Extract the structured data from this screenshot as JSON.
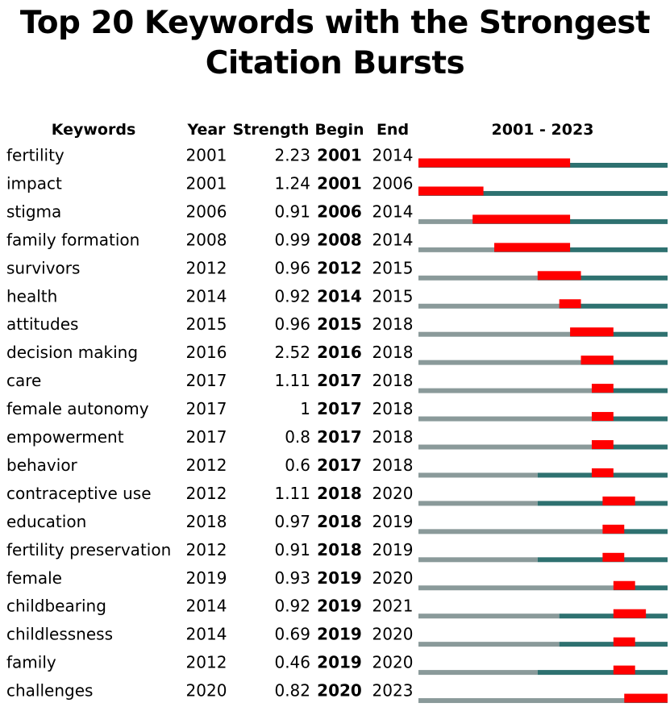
{
  "title_line1": "Top 20 Keywords with the Strongest",
  "title_line2": "Citation Bursts",
  "headers": {
    "keywords": "Keywords",
    "year": "Year",
    "strength": "Strength",
    "begin": "Begin",
    "end": "End",
    "range": "2001 - 2023"
  },
  "colors": {
    "pre_year": "#8a9a9a",
    "active": "#2e7170",
    "burst": "#ff0000"
  },
  "chart_data": {
    "type": "table",
    "title": "Top 20 Keywords with the Strongest Citation Bursts",
    "x_range": [
      2001,
      2023
    ],
    "columns": [
      "Keywords",
      "Year",
      "Strength",
      "Begin",
      "End"
    ],
    "rows": [
      {
        "keyword": "fertility",
        "year": "2001",
        "strength": "2.23",
        "begin": "2001",
        "end": "2014"
      },
      {
        "keyword": "impact",
        "year": "2001",
        "strength": "1.24",
        "begin": "2001",
        "end": "2006"
      },
      {
        "keyword": "stigma",
        "year": "2006",
        "strength": "0.91",
        "begin": "2006",
        "end": "2014"
      },
      {
        "keyword": "family formation",
        "year": "2008",
        "strength": "0.99",
        "begin": "2008",
        "end": "2014"
      },
      {
        "keyword": "survivors",
        "year": "2012",
        "strength": "0.96",
        "begin": "2012",
        "end": "2015"
      },
      {
        "keyword": "health",
        "year": "2014",
        "strength": "0.92",
        "begin": "2014",
        "end": "2015"
      },
      {
        "keyword": "attitudes",
        "year": "2015",
        "strength": "0.96",
        "begin": "2015",
        "end": "2018"
      },
      {
        "keyword": "decision making",
        "year": "2016",
        "strength": "2.52",
        "begin": "2016",
        "end": "2018"
      },
      {
        "keyword": "care",
        "year": "2017",
        "strength": "1.11",
        "begin": "2017",
        "end": "2018"
      },
      {
        "keyword": "female autonomy",
        "year": "2017",
        "strength": "1",
        "begin": "2017",
        "end": "2018"
      },
      {
        "keyword": "empowerment",
        "year": "2017",
        "strength": "0.8",
        "begin": "2017",
        "end": "2018"
      },
      {
        "keyword": "behavior",
        "year": "2012",
        "strength": "0.6",
        "begin": "2017",
        "end": "2018"
      },
      {
        "keyword": "contraceptive use",
        "year": "2012",
        "strength": "1.11",
        "begin": "2018",
        "end": "2020"
      },
      {
        "keyword": "education",
        "year": "2018",
        "strength": "0.97",
        "begin": "2018",
        "end": "2019"
      },
      {
        "keyword": "fertility preservation",
        "year": "2012",
        "strength": "0.91",
        "begin": "2018",
        "end": "2019"
      },
      {
        "keyword": "female",
        "year": "2019",
        "strength": "0.93",
        "begin": "2019",
        "end": "2020"
      },
      {
        "keyword": "childbearing",
        "year": "2014",
        "strength": "0.92",
        "begin": "2019",
        "end": "2021"
      },
      {
        "keyword": "childlessness",
        "year": "2014",
        "strength": "0.69",
        "begin": "2019",
        "end": "2020"
      },
      {
        "keyword": "family",
        "year": "2012",
        "strength": "0.46",
        "begin": "2019",
        "end": "2020"
      },
      {
        "keyword": "challenges",
        "year": "2020",
        "strength": "0.82",
        "begin": "2020",
        "end": "2023"
      }
    ]
  }
}
